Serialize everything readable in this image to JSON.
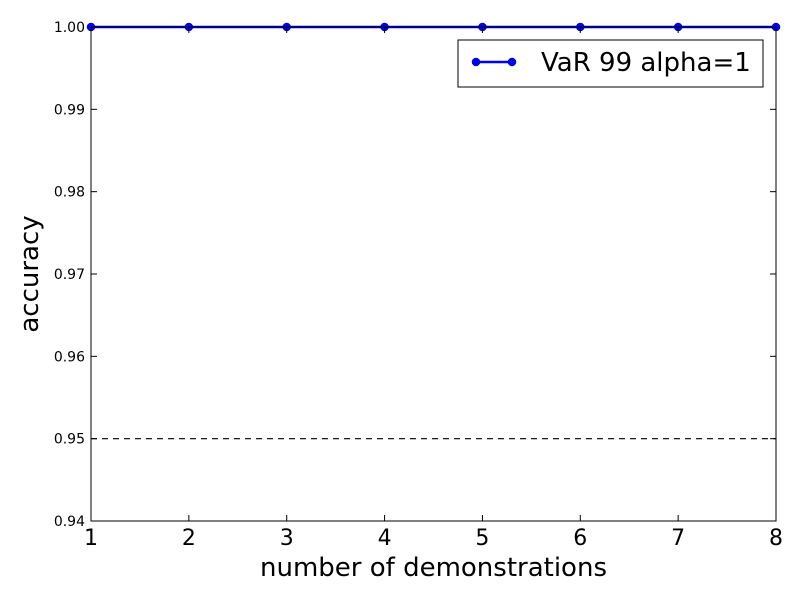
{
  "chart_data": {
    "type": "line",
    "x": [
      1,
      2,
      3,
      4,
      5,
      6,
      7,
      8
    ],
    "series": [
      {
        "name": "VaR 99 alpha=1",
        "values": [
          1.0,
          1.0,
          1.0,
          1.0,
          1.0,
          1.0,
          1.0,
          1.0
        ],
        "color": "#0000ff",
        "marker": "circle"
      }
    ],
    "reference_line": {
      "y": 0.95,
      "style": "dashed",
      "color": "#000000"
    },
    "xlabel": "number of demonstrations",
    "ylabel": "accuracy",
    "xlim": [
      1,
      8
    ],
    "ylim": [
      0.94,
      1.0
    ],
    "x_ticks": [
      "1",
      "2",
      "3",
      "4",
      "5",
      "6",
      "7",
      "8"
    ],
    "y_ticks": [
      "0.94",
      "0.95",
      "0.96",
      "0.97",
      "0.98",
      "0.99",
      "1.00"
    ],
    "grid": false,
    "legend_position": "top-right"
  }
}
